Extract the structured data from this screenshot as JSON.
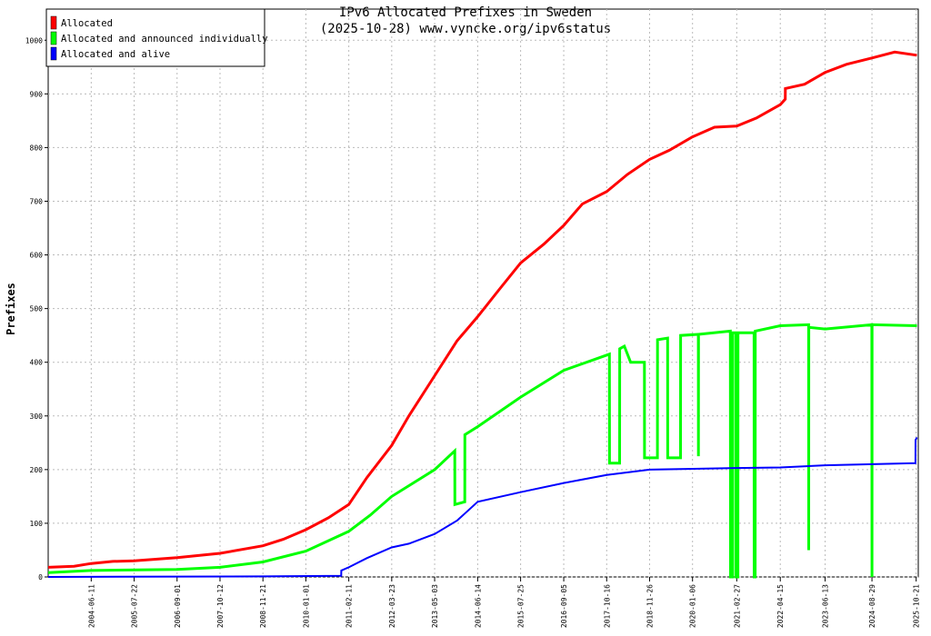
{
  "chart_data": {
    "type": "line",
    "title": "IPv6 Allocated Prefixes in Sweden",
    "subtitle": "(2025-10-28) www.vyncke.org/ipv6status",
    "y_label": "Prefixes",
    "xlim": [
      "2003-05-01",
      "2025-11-10"
    ],
    "xticks": [
      "2004-06-11",
      "2005-07-22",
      "2006-09-01",
      "2007-10-12",
      "2008-11-21",
      "2010-01-01",
      "2011-02-11",
      "2012-03-23",
      "2013-05-03",
      "2014-06-14",
      "2015-07-25",
      "2016-09-05",
      "2017-10-16",
      "2018-11-26",
      "2020-01-06",
      "2021-02-27",
      "2022-04-15",
      "2023-06-13",
      "2024-08-29",
      "2025-10-21"
    ],
    "ylim": [
      0,
      1058
    ],
    "yticks": [
      0,
      100,
      200,
      300,
      400,
      500,
      600,
      700,
      800,
      900,
      1000
    ],
    "grid": true,
    "legend": "top-left",
    "series": [
      {
        "name": "Allocated",
        "color": "#ff0000",
        "x": [
          "2003-05-01",
          "2004-01-01",
          "2004-06-11",
          "2005-01-01",
          "2005-07-22",
          "2006-09-01",
          "2007-10-12",
          "2008-11-21",
          "2009-06-01",
          "2010-01-01",
          "2010-08-01",
          "2011-02-11",
          "2011-08-01",
          "2012-03-23",
          "2012-09-01",
          "2013-05-03",
          "2013-12-01",
          "2014-06-14",
          "2015-01-01",
          "2015-07-25",
          "2016-03-01",
          "2016-09-05",
          "2017-03-01",
          "2017-10-16",
          "2018-05-01",
          "2018-11-26",
          "2019-06-01",
          "2020-01-06",
          "2020-08-01",
          "2021-02-27",
          "2021-09-01",
          "2022-04-15",
          "2022-06-01",
          "2022-06-02",
          "2022-12-01",
          "2023-06-13",
          "2024-01-01",
          "2024-08-29",
          "2025-04-01",
          "2025-10-28"
        ],
        "values": [
          18,
          20,
          25,
          29,
          30,
          36,
          44,
          58,
          70,
          88,
          110,
          135,
          185,
          245,
          300,
          375,
          440,
          485,
          535,
          585,
          620,
          655,
          695,
          718,
          750,
          778,
          795,
          820,
          838,
          840,
          855,
          880,
          890,
          910,
          918,
          940,
          955,
          967,
          978,
          972
        ]
      },
      {
        "name": "Allocated and announced individually",
        "color": "#00ff00",
        "x": [
          "2003-05-01",
          "2004-06-11",
          "2006-09-01",
          "2007-10-12",
          "2008-11-21",
          "2010-01-01",
          "2011-02-11",
          "2011-09-01",
          "2012-03-23",
          "2013-05-03",
          "2013-11-09",
          "2013-11-10",
          "2014-02-12",
          "2014-02-13",
          "2014-06-14",
          "2015-07-25",
          "2016-09-05",
          "2017-11-11",
          "2017-11-12",
          "2018-02-15",
          "2018-02-16",
          "2018-04-01",
          "2018-05-30",
          "2018-10-08",
          "2018-10-09",
          "2019-02-08",
          "2019-02-09",
          "2019-05-15",
          "2019-05-16",
          "2019-09-14",
          "2019-09-15",
          "2020-03-01",
          "2020-03-02",
          "2020-03-03",
          "2020-12-29",
          "2020-12-30",
          "2021-01-20",
          "2021-01-21",
          "2021-02-20",
          "2021-02-21",
          "2021-03-10",
          "2021-03-11",
          "2021-08-10",
          "2021-08-11",
          "2021-08-20",
          "2021-08-21",
          "2022-04-15",
          "2023-01-08",
          "2023-01-09",
          "2023-01-10",
          "2023-06-13",
          "2024-08-28",
          "2024-08-29",
          "2024-08-30",
          "2025-10-28"
        ],
        "values": [
          8,
          12,
          14,
          18,
          28,
          48,
          85,
          115,
          150,
          200,
          235,
          135,
          140,
          265,
          280,
          335,
          385,
          415,
          212,
          212,
          425,
          430,
          400,
          400,
          222,
          222,
          442,
          445,
          222,
          222,
          450,
          452,
          225,
          452,
          458,
          0,
          0,
          455,
          455,
          0,
          0,
          455,
          455,
          0,
          0,
          458,
          468,
          470,
          50,
          465,
          462,
          470,
          0,
          470,
          468
        ]
      },
      {
        "name": "Allocated and alive",
        "color": "#0000ff",
        "x": [
          "2003-05-01",
          "2008-11-21",
          "2010-12-01",
          "2010-12-02",
          "2011-02-11",
          "2011-08-01",
          "2012-03-23",
          "2012-09-01",
          "2013-05-03",
          "2013-12-01",
          "2014-06-14",
          "2015-07-25",
          "2016-09-05",
          "2017-10-16",
          "2018-11-26",
          "2021-02-27",
          "2022-04-15",
          "2023-06-13",
          "2025-10-14",
          "2025-10-15",
          "2025-10-28"
        ],
        "values": [
          0,
          1,
          2,
          12,
          18,
          35,
          55,
          62,
          80,
          105,
          140,
          158,
          175,
          190,
          200,
          203,
          204,
          208,
          212,
          255,
          260
        ]
      }
    ]
  }
}
